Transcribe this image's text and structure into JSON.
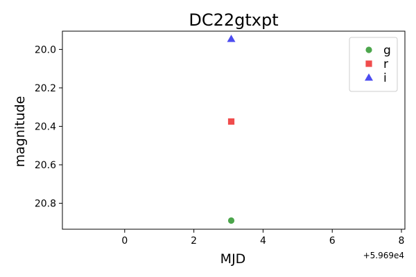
{
  "chart_data": {
    "type": "scatter",
    "title": "DC22gtxpt",
    "xlabel": "MJD",
    "ylabel": "magnitude",
    "x_offset_label": "+5.969e4",
    "x_offset": 59690,
    "xlim": [
      59688.2,
      59698.1
    ],
    "ylim": [
      20.935,
      19.905
    ],
    "y_inverted": true,
    "x_ticks": [
      0,
      2,
      4,
      6,
      8
    ],
    "x_tick_labels": [
      "0",
      "2",
      "4",
      "6",
      "8"
    ],
    "y_ticks": [
      20.0,
      20.2,
      20.4,
      20.6,
      20.8
    ],
    "y_tick_labels": [
      "20.0",
      "20.2",
      "20.4",
      "20.6",
      "20.8"
    ],
    "grid": false,
    "legend_position": "top-right",
    "series": [
      {
        "name": "g",
        "marker": "circle",
        "color": "#4ca64c",
        "points": [
          {
            "x": 59693.08,
            "y": 20.89
          }
        ]
      },
      {
        "name": "r",
        "marker": "square",
        "color": "#f04c4c",
        "points": [
          {
            "x": 59693.08,
            "y": 20.375
          }
        ]
      },
      {
        "name": "i",
        "marker": "triangle",
        "color": "#4c4cf0",
        "points": [
          {
            "x": 59693.08,
            "y": 19.945
          }
        ]
      }
    ]
  }
}
